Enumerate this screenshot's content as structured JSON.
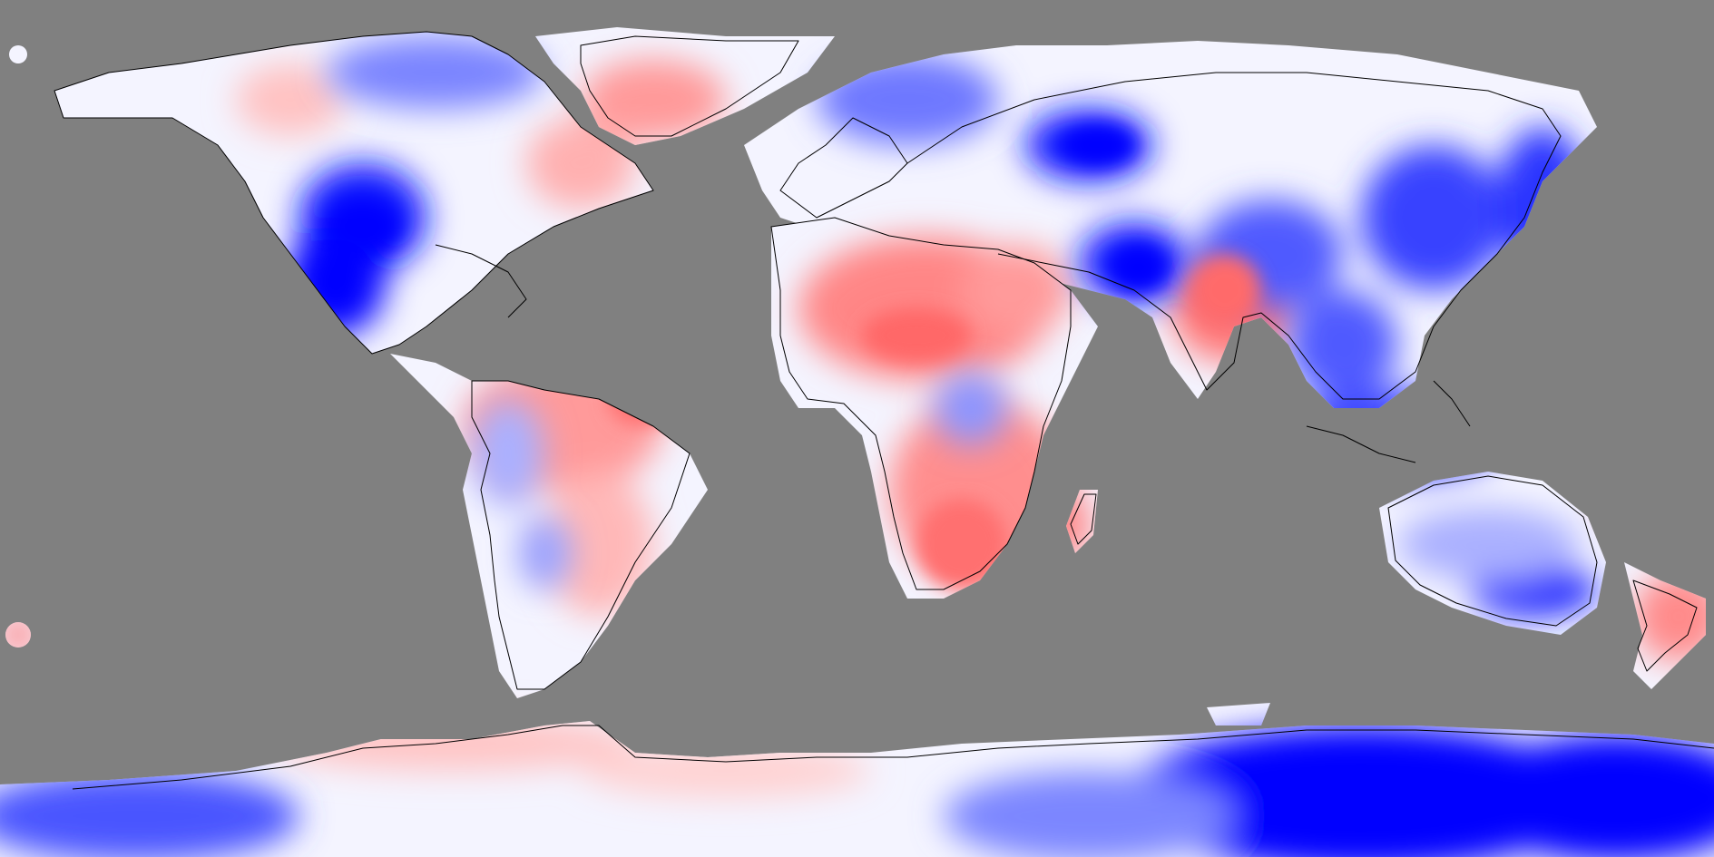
{
  "map": {
    "projection": "equirectangular",
    "longitude_range": [
      -180,
      180
    ],
    "latitude_range": [
      -90,
      90
    ],
    "no_data_color": "#808080",
    "coastline_color": "#000000",
    "color_scale": {
      "type": "diverging",
      "low_color": "#0000ff",
      "mid_color": "#ffffff",
      "high_color": "#ff5050"
    },
    "labels": []
  }
}
